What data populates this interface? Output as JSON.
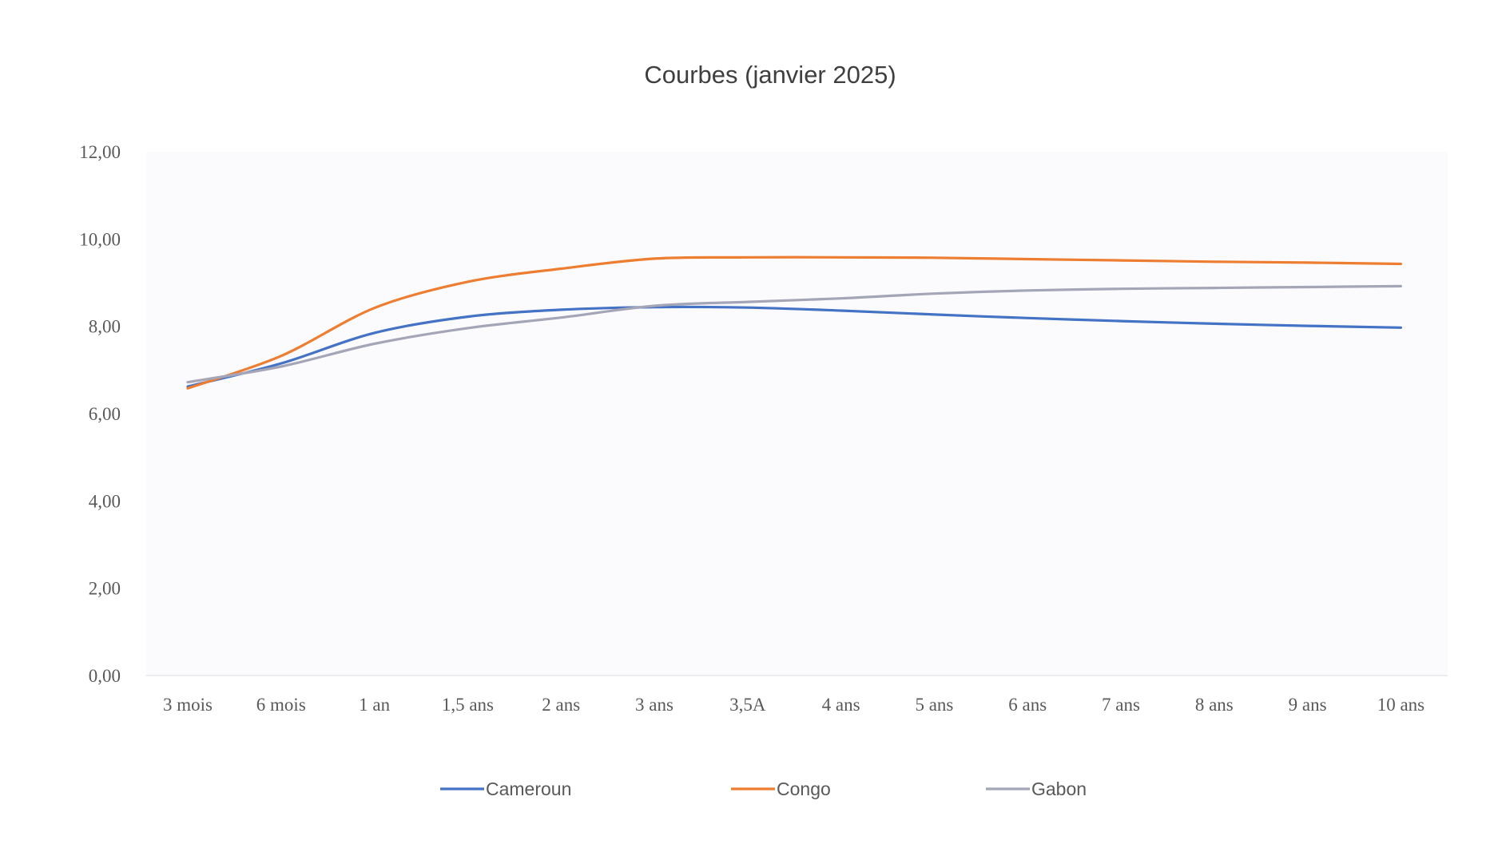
{
  "chart_data": {
    "type": "line",
    "title": "Courbes (janvier 2025)",
    "xlabel": "",
    "ylabel": "",
    "categories": [
      "3 mois",
      "6 mois",
      "1 an",
      "1,5 ans",
      "2 ans",
      "3 ans",
      "3,5A",
      "4 ans",
      "5 ans",
      "6 ans",
      "7 ans",
      "8 ans",
      "9 ans",
      "10 ans"
    ],
    "y_ticks": [
      "0,00",
      "2,00",
      "4,00",
      "6,00",
      "8,00",
      "10,00",
      "12,00"
    ],
    "ylim": [
      0,
      12
    ],
    "grid": false,
    "legend_position": "bottom",
    "series": [
      {
        "name": "Cameroun",
        "color": "#4472c4",
        "values": [
          6.62,
          7.15,
          7.85,
          8.22,
          8.38,
          8.44,
          8.43,
          8.36,
          8.27,
          8.19,
          8.12,
          8.06,
          8.01,
          7.97
        ]
      },
      {
        "name": "Congo",
        "color": "#ed7d31",
        "values": [
          6.58,
          7.32,
          8.42,
          9.02,
          9.32,
          9.55,
          9.58,
          9.58,
          9.57,
          9.54,
          9.51,
          9.48,
          9.46,
          9.43
        ]
      },
      {
        "name": "Gabon",
        "color": "#a5a5b8",
        "values": [
          6.72,
          7.08,
          7.6,
          7.96,
          8.2,
          8.47,
          8.56,
          8.64,
          8.75,
          8.82,
          8.86,
          8.88,
          8.9,
          8.92
        ]
      }
    ]
  }
}
